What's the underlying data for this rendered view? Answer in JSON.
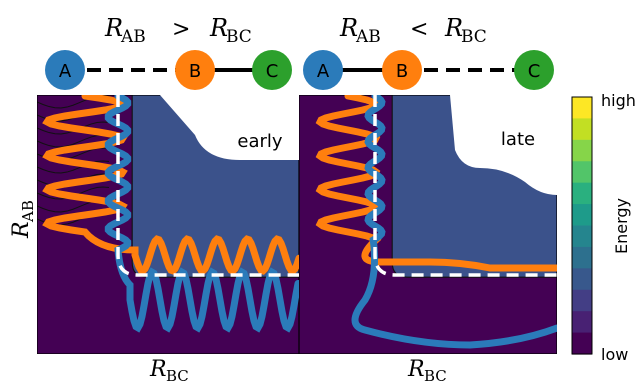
{
  "headers": {
    "left": {
      "lhs": "R",
      "lhs_sub": "AB",
      "op": ">",
      "rhs": "R",
      "rhs_sub": "BC"
    },
    "right": {
      "lhs": "R",
      "lhs_sub": "AB",
      "op": "<",
      "rhs": "R",
      "rhs_sub": "BC"
    }
  },
  "molecules": {
    "left": {
      "atoms": [
        "A",
        "B",
        "C"
      ],
      "bonds": [
        "dashed",
        "solid"
      ]
    },
    "right": {
      "atoms": [
        "A",
        "B",
        "C"
      ],
      "bonds": [
        "solid",
        "dashed"
      ]
    }
  },
  "atom_colors": {
    "A": "#2b7bba",
    "B": "#ff7f0e",
    "C": "#2ca02c"
  },
  "panels": {
    "left": {
      "annotation": "early",
      "xlabel": "R",
      "xlabel_sub": "BC"
    },
    "right": {
      "annotation": "late",
      "xlabel": "R",
      "xlabel_sub": "BC"
    }
  },
  "ylabel": {
    "main": "R",
    "sub": "AB"
  },
  "colorbar": {
    "label": "Energy",
    "high": "high",
    "low": "low",
    "colors": [
      "#fde725",
      "#c2df23",
      "#86d549",
      "#52c569",
      "#2ab07f",
      "#1e9b8a",
      "#25858e",
      "#2d708e",
      "#38588c",
      "#433e85",
      "#482173",
      "#440154"
    ]
  },
  "trajectory_colors": {
    "orange": "#ff7f0e",
    "blue": "#2b7bba",
    "reaction_path": "#ffffff"
  }
}
